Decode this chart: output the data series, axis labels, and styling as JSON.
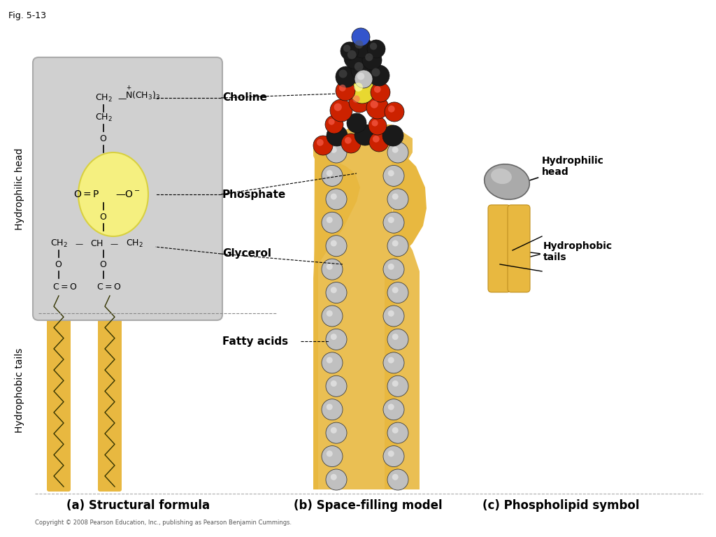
{
  "bg_color": "#ffffff",
  "gray_box_color": "#d0d0d0",
  "yellow_circle_color": "#f5f080",
  "gold_tail_color": "#e8b840",
  "label_a": "(a) Structural formula",
  "label_b": "(b) Space-filling model",
  "label_c": "(c) Phospholipid symbol",
  "hydrophilic_head_label": "Hydrophilic head",
  "hydrophobic_tails_label": "Hydrophobic tails",
  "choline_label": "Choline",
  "phosphate_label": "Phosphate",
  "glycerol_label": "Glycerol",
  "fatty_acids_label": "Fatty acids",
  "hydrophilic_head_label2": "Hydrophilic\nhead",
  "hydrophobic_tails_label2": "Hydrophobic\ntails",
  "copyright": "Copyright © 2008 Pearson Education, Inc., publishing as Pearson Benjamin Cummings.",
  "fig_label": "Fig. 5-13"
}
